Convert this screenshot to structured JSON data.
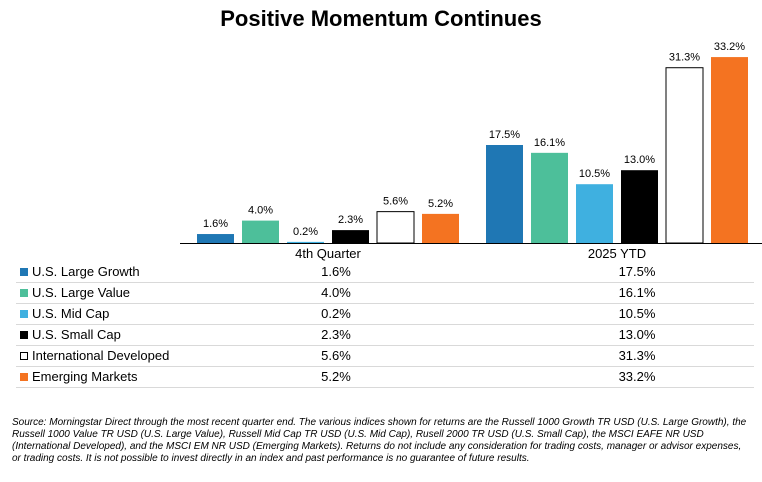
{
  "chart_data": {
    "type": "bar",
    "title": "Positive Momentum Continues",
    "categories": [
      "4th Quarter",
      "2025 YTD"
    ],
    "series": [
      {
        "name": "U.S. Large Growth",
        "values": [
          1.6,
          17.5
        ],
        "labels": [
          "1.6%",
          "17.5%"
        ],
        "color": "#1f77b4",
        "hollow": false
      },
      {
        "name": "U.S. Large Value",
        "values": [
          4.0,
          16.1
        ],
        "labels": [
          "4.0%",
          "16.1%"
        ],
        "color": "#4dbf9a",
        "hollow": false
      },
      {
        "name": "U.S. Mid Cap",
        "values": [
          0.2,
          10.5
        ],
        "labels": [
          "0.2%",
          "10.5%"
        ],
        "color": "#3fb0e0",
        "hollow": false
      },
      {
        "name": "U.S. Small Cap",
        "values": [
          2.3,
          13.0
        ],
        "labels": [
          "2.3%",
          "13.0%"
        ],
        "color": "#000000",
        "hollow": false
      },
      {
        "name": "International Developed",
        "values": [
          5.6,
          31.3
        ],
        "labels": [
          "5.6%",
          "31.3%"
        ],
        "color": "#ffffff",
        "hollow": true
      },
      {
        "name": "Emerging Markets",
        "values": [
          5.2,
          33.2
        ],
        "labels": [
          "5.2%",
          "33.2%"
        ],
        "color": "#f47321",
        "hollow": false
      }
    ],
    "ylim": [
      0,
      35
    ],
    "legend": "data table below chart",
    "grid": false
  },
  "table": {
    "rows": [
      {
        "name": "U.S. Large Growth",
        "q4": "1.6%",
        "ytd": "17.5%",
        "color": "#1f77b4"
      },
      {
        "name": "U.S. Large Value",
        "q4": "4.0%",
        "ytd": "16.1%",
        "color": "#4dbf9a"
      },
      {
        "name": "U.S. Mid Cap",
        "q4": "0.2%",
        "ytd": "10.5%",
        "color": "#3fb0e0"
      },
      {
        "name": "U.S. Small Cap",
        "q4": "2.3%",
        "ytd": "13.0%",
        "color": "#000000"
      },
      {
        "name": "International Developed",
        "q4": "5.6%",
        "ytd": "31.3%",
        "color": "#ffffff"
      },
      {
        "name": "Emerging Markets",
        "q4": "5.2%",
        "ytd": "33.2%",
        "color": "#f47321"
      }
    ]
  },
  "footnote": "Source: Morningstar Direct through the most recent quarter end.  The various indices shown for returns are the Russell 1000 Growth TR USD (U.S. Large Growth), the Russell 1000 Value TR USD (U.S. Large Value), Russell Mid Cap TR USD (U.S. Mid Cap), Rusell 2000 TR USD (U.S. Small Cap), the MSCI EAFE NR USD  (International Developed), and the MSCI EM NR USD (Emerging Markets).  Returns do not include any consideration for trading costs, manager or advisor expenses, or trading costs.  It is not possible to invest directly in an index and past performance is no guarantee of future results."
}
